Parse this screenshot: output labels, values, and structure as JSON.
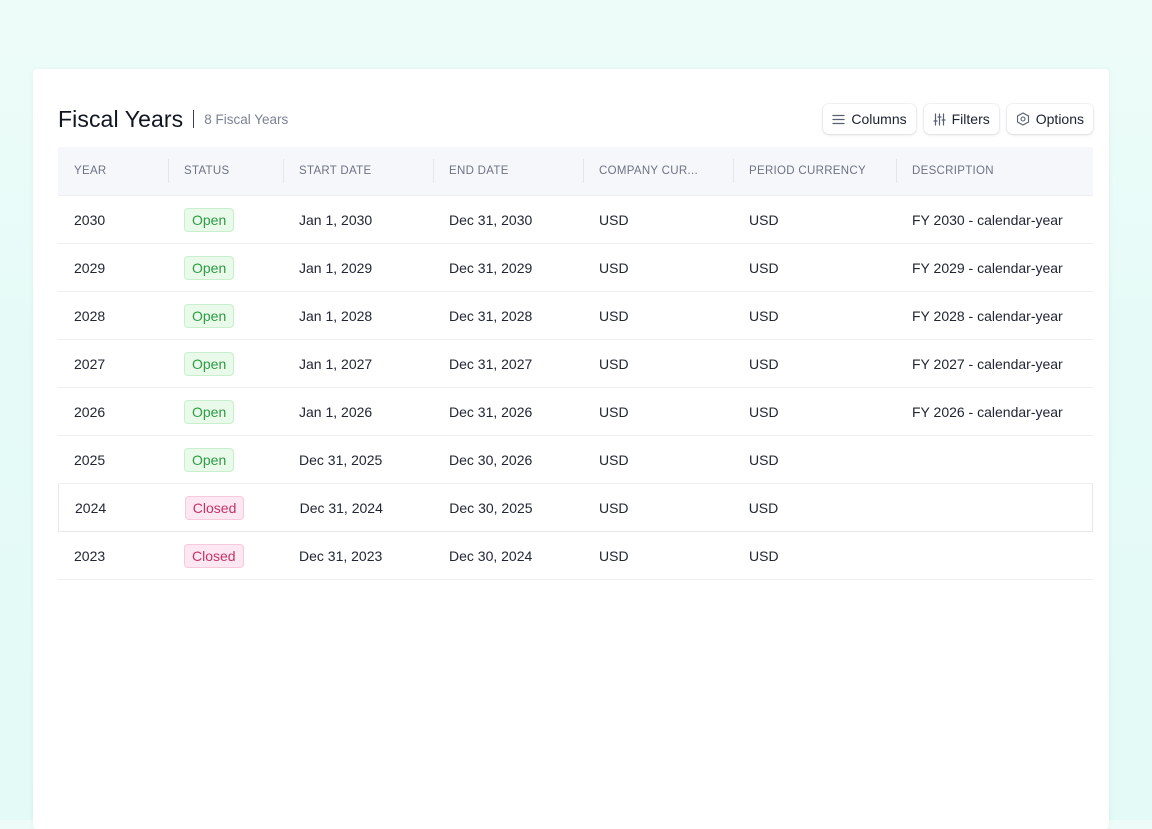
{
  "header": {
    "title": "Fiscal Years",
    "count": "8 Fiscal Years",
    "columns_label": "Columns",
    "filters_label": "Filters",
    "options_label": "Options"
  },
  "table": {
    "headers": [
      "YEAR",
      "STATUS",
      "START DATE",
      "END DATE",
      "COMPANY CUR...",
      "PERIOD CURRENCY",
      "DESCRIPTION"
    ],
    "rows": [
      {
        "year": "2030",
        "status": "Open",
        "start": "Jan 1, 2030",
        "end": "Dec 31, 2030",
        "company_currency": "USD",
        "period_currency": "USD",
        "description": "FY 2030 - calendar-year"
      },
      {
        "year": "2029",
        "status": "Open",
        "start": "Jan 1, 2029",
        "end": "Dec 31, 2029",
        "company_currency": "USD",
        "period_currency": "USD",
        "description": "FY 2029 - calendar-year"
      },
      {
        "year": "2028",
        "status": "Open",
        "start": "Jan 1, 2028",
        "end": "Dec 31, 2028",
        "company_currency": "USD",
        "period_currency": "USD",
        "description": "FY 2028 - calendar-year"
      },
      {
        "year": "2027",
        "status": "Open",
        "start": "Jan 1, 2027",
        "end": "Dec 31, 2027",
        "company_currency": "USD",
        "period_currency": "USD",
        "description": "FY 2027 - calendar-year"
      },
      {
        "year": "2026",
        "status": "Open",
        "start": "Jan 1, 2026",
        "end": "Dec 31, 2026",
        "company_currency": "USD",
        "period_currency": "USD",
        "description": "FY 2026 - calendar-year"
      },
      {
        "year": "2025",
        "status": "Open",
        "start": "Dec 31, 2025",
        "end": "Dec 30, 2026",
        "company_currency": "USD",
        "period_currency": "USD",
        "description": ""
      },
      {
        "year": "2024",
        "status": "Closed",
        "start": "Dec 31, 2024",
        "end": "Dec 30, 2025",
        "company_currency": "USD",
        "period_currency": "USD",
        "description": ""
      },
      {
        "year": "2023",
        "status": "Closed",
        "start": "Dec 31, 2023",
        "end": "Dec 30, 2024",
        "company_currency": "USD",
        "period_currency": "USD",
        "description": ""
      }
    ]
  },
  "icons": {
    "columns": "list-icon",
    "filters": "sliders-icon",
    "options": "hexagon-settings-icon"
  },
  "colors": {
    "open_text": "#2f9a44",
    "open_bg": "#e9faea",
    "closed_text": "#c2336c",
    "closed_bg": "#fde7f0"
  }
}
